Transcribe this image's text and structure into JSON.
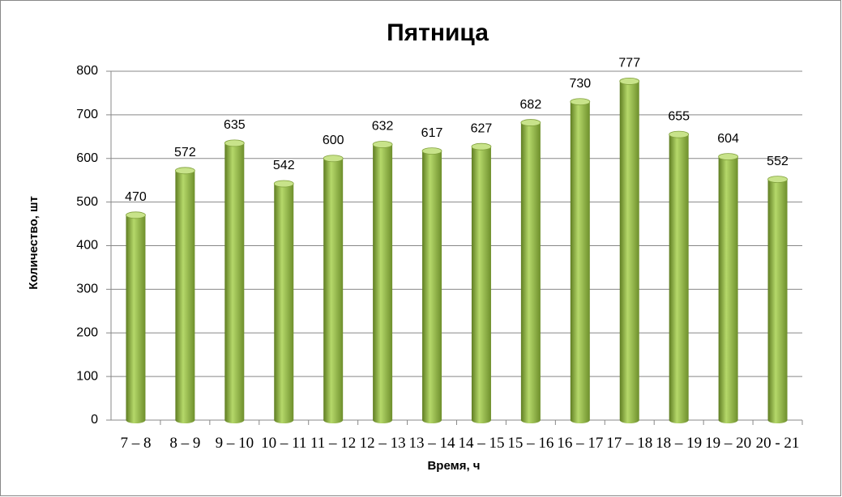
{
  "chart_data": {
    "type": "bar",
    "title": "Пятница",
    "x_label": "Время, ч",
    "y_label": "Количество, шт",
    "categories": [
      "7 – 8",
      "8 – 9",
      "9 – 10",
      "10 – 11",
      "11 – 12",
      "12 – 13",
      "13 – 14",
      "14 – 15",
      "15 – 16",
      "16 – 17",
      "17 – 18",
      "18 – 19",
      "19 – 20",
      "20 - 21"
    ],
    "values": [
      470,
      572,
      635,
      542,
      600,
      632,
      617,
      627,
      682,
      730,
      777,
      655,
      604,
      552
    ],
    "color": "#9bbb59",
    "ylim": [
      0,
      800
    ],
    "yticks": [
      0,
      100,
      200,
      300,
      400,
      500,
      600,
      700,
      800
    ],
    "grid": true
  }
}
